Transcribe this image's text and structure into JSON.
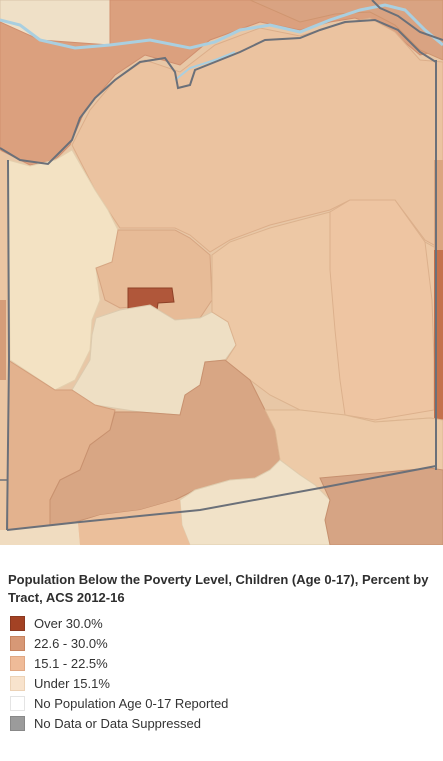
{
  "legend": {
    "title": "Population Below the Poverty Level, Children (Age 0-17), Percent by Tract, ACS 2012-16",
    "items": [
      {
        "label": "Over 30.0%",
        "color": "#a34224"
      },
      {
        "label": "22.6 - 30.0%",
        "color": "#d79876"
      },
      {
        "label": "15.1 - 22.5%",
        "color": "#efbb98"
      },
      {
        "label": "Under 15.1%",
        "color": "#f8e3cd"
      },
      {
        "label": "No Population Age 0-17 Reported",
        "color": "#ffffff"
      },
      {
        "label": "No Data or Data Suppressed",
        "color": "#9b9b9b"
      }
    ]
  },
  "map": {
    "river_color": "#a9cfe0",
    "boundary_color": "#6b7079"
  }
}
